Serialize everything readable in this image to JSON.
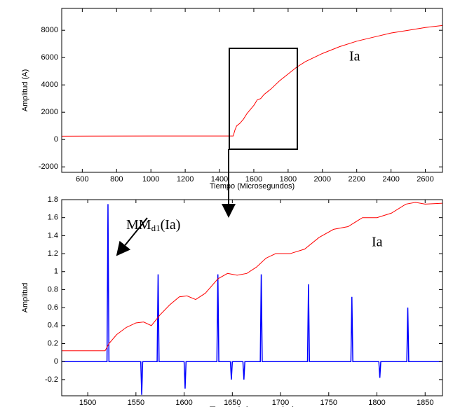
{
  "chart_data": [
    {
      "type": "line",
      "xlabel": "Tiempo (Microsegundos)",
      "ylabel": "Amplitud (A)",
      "xlim": [
        480,
        2700
      ],
      "ylim": [
        -2400,
        9600
      ],
      "xticks": [
        600,
        800,
        1000,
        1200,
        1400,
        1600,
        1800,
        2000,
        2200,
        2400,
        2600
      ],
      "yticks": [
        -2000,
        0,
        2000,
        4000,
        6000,
        8000
      ],
      "annotations": [
        "Ia"
      ],
      "series": [
        {
          "color": "#ff0000",
          "x": [
            480,
            1000,
            1480,
            1490,
            1500,
            1520,
            1540,
            1560,
            1580,
            1600,
            1620,
            1640,
            1660,
            1680,
            1700,
            1750,
            1800,
            1850,
            1900,
            1950,
            2000,
            2100,
            2200,
            2300,
            2400,
            2500,
            2600,
            2700
          ],
          "values": [
            250,
            260,
            260,
            700,
            1000,
            1200,
            1500,
            1900,
            2200,
            2500,
            2900,
            3000,
            3300,
            3500,
            3700,
            4300,
            4800,
            5300,
            5700,
            6000,
            6300,
            6800,
            7200,
            7500,
            7800,
            8000,
            8200,
            8350
          ]
        }
      ]
    },
    {
      "type": "line",
      "xlabel": "Tiempo (microsegundos)",
      "ylabel": "Amplitud",
      "xlim": [
        1473,
        1868
      ],
      "ylim": [
        -0.38,
        1.8
      ],
      "xticks": [
        1500,
        1550,
        1600,
        1650,
        1700,
        1750,
        1800,
        1850
      ],
      "yticks": [
        -0.2,
        0,
        0.2,
        0.4,
        0.6,
        0.8,
        1,
        1.2,
        1.4,
        1.6,
        1.8
      ],
      "annotations": [
        "Ia"
      ],
      "annotation_mm": [
        "MM",
        "d1",
        "(Ia)"
      ],
      "series": [
        {
          "color": "#ff0000",
          "x": [
            1473,
            1518,
            1522,
            1530,
            1540,
            1550,
            1558,
            1566,
            1575,
            1585,
            1595,
            1603,
            1612,
            1622,
            1635,
            1645,
            1655,
            1665,
            1675,
            1685,
            1695,
            1710,
            1725,
            1740,
            1755,
            1770,
            1785,
            1800,
            1815,
            1830,
            1840,
            1850,
            1868
          ],
          "values": [
            0.12,
            0.12,
            0.2,
            0.3,
            0.38,
            0.43,
            0.44,
            0.4,
            0.52,
            0.63,
            0.72,
            0.73,
            0.69,
            0.76,
            0.92,
            0.98,
            0.96,
            0.98,
            1.05,
            1.15,
            1.2,
            1.2,
            1.25,
            1.38,
            1.47,
            1.5,
            1.6,
            1.6,
            1.65,
            1.75,
            1.77,
            1.75,
            1.76
          ]
        },
        {
          "color": "#0000ff",
          "x": [
            1473,
            1520,
            1521,
            1522,
            1555,
            1556,
            1557,
            1572,
            1573,
            1574,
            1600,
            1601,
            1602,
            1634,
            1635,
            1636,
            1648,
            1649,
            1650,
            1661,
            1662,
            1663,
            1679,
            1680,
            1681,
            1728,
            1729,
            1730,
            1773,
            1774,
            1775,
            1802,
            1803,
            1804,
            1831,
            1832,
            1833,
            1868
          ],
          "values": [
            0,
            0,
            1.75,
            0,
            0,
            -0.37,
            0,
            0,
            0.97,
            0,
            0,
            -0.3,
            0,
            0,
            0.97,
            0,
            0,
            -0.2,
            0,
            0,
            -0.2,
            0,
            0,
            0.97,
            0,
            0,
            0.86,
            0,
            0,
            0.72,
            0,
            0,
            -0.18,
            0,
            0,
            0.6,
            0,
            0
          ]
        }
      ]
    }
  ]
}
